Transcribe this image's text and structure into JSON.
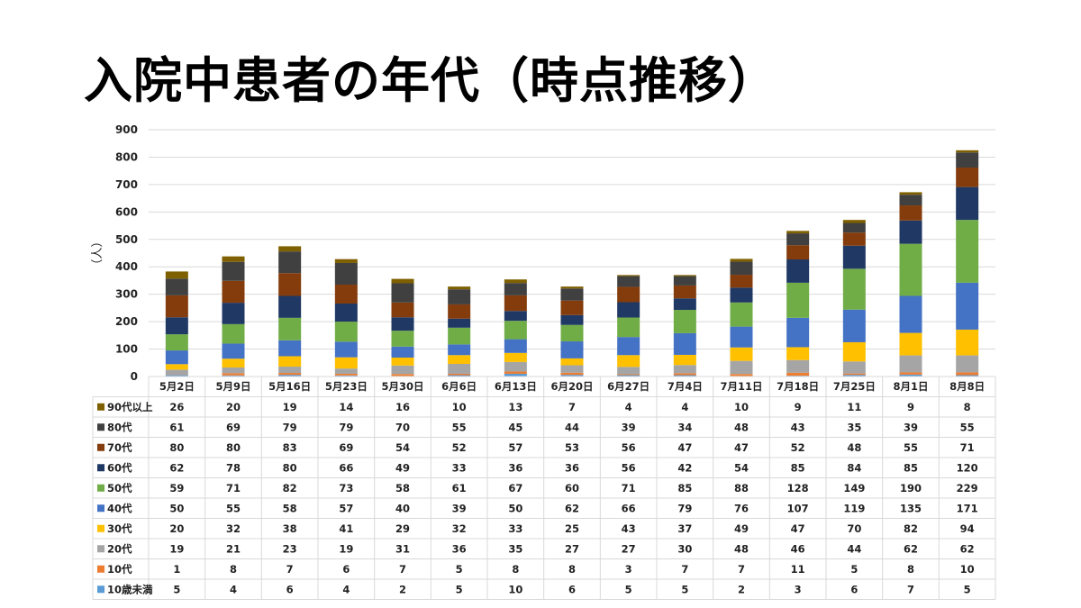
{
  "slide": {
    "title": "入院中患者の年代（時点推移）"
  },
  "chart_data": {
    "type": "bar",
    "stacked": true,
    "ylabel": "（人）",
    "ylim": [
      0,
      900
    ],
    "yticks": [
      0,
      100,
      200,
      300,
      400,
      500,
      600,
      700,
      800,
      900
    ],
    "grid": true,
    "legend": "data-table",
    "categories": [
      "5月2日",
      "5月9日",
      "5月16日",
      "5月23日",
      "5月30日",
      "6月6日",
      "6月13日",
      "6月20日",
      "6月27日",
      "7月4日",
      "7月11日",
      "7月18日",
      "7月25日",
      "8月1日",
      "8月8日"
    ],
    "series": [
      {
        "name": "10歳未満",
        "color": "#5b9bd5",
        "values": [
          5,
          4,
          6,
          4,
          2,
          5,
          10,
          6,
          5,
          5,
          2,
          3,
          6,
          7,
          5
        ]
      },
      {
        "name": "10代",
        "color": "#ed7d31",
        "values": [
          1,
          8,
          7,
          6,
          7,
          5,
          8,
          8,
          3,
          7,
          7,
          11,
          5,
          8,
          10
        ]
      },
      {
        "name": "20代",
        "color": "#a5a5a5",
        "values": [
          19,
          21,
          23,
          19,
          31,
          36,
          35,
          27,
          27,
          30,
          48,
          46,
          44,
          62,
          62
        ]
      },
      {
        "name": "30代",
        "color": "#ffc000",
        "values": [
          20,
          32,
          38,
          41,
          29,
          32,
          33,
          25,
          43,
          37,
          49,
          47,
          70,
          82,
          94
        ]
      },
      {
        "name": "40代",
        "color": "#4472c4",
        "values": [
          50,
          55,
          58,
          57,
          40,
          39,
          50,
          62,
          66,
          79,
          76,
          107,
          119,
          135,
          171
        ]
      },
      {
        "name": "50代",
        "color": "#70ad47",
        "values": [
          59,
          71,
          82,
          73,
          58,
          61,
          67,
          60,
          71,
          85,
          88,
          128,
          149,
          190,
          229
        ]
      },
      {
        "name": "60代",
        "color": "#203864",
        "values": [
          62,
          78,
          80,
          66,
          49,
          33,
          36,
          36,
          56,
          42,
          54,
          85,
          84,
          85,
          120
        ]
      },
      {
        "name": "70代",
        "color": "#843c0c",
        "values": [
          80,
          80,
          83,
          69,
          54,
          52,
          57,
          53,
          56,
          47,
          47,
          52,
          48,
          55,
          71
        ]
      },
      {
        "name": "80代",
        "color": "#404040",
        "values": [
          61,
          69,
          79,
          79,
          70,
          55,
          45,
          44,
          39,
          34,
          48,
          43,
          35,
          39,
          55
        ]
      },
      {
        "name": "90代以上",
        "color": "#7f6000",
        "values": [
          26,
          20,
          19,
          14,
          16,
          10,
          13,
          7,
          4,
          4,
          10,
          9,
          11,
          9,
          8
        ]
      }
    ]
  }
}
